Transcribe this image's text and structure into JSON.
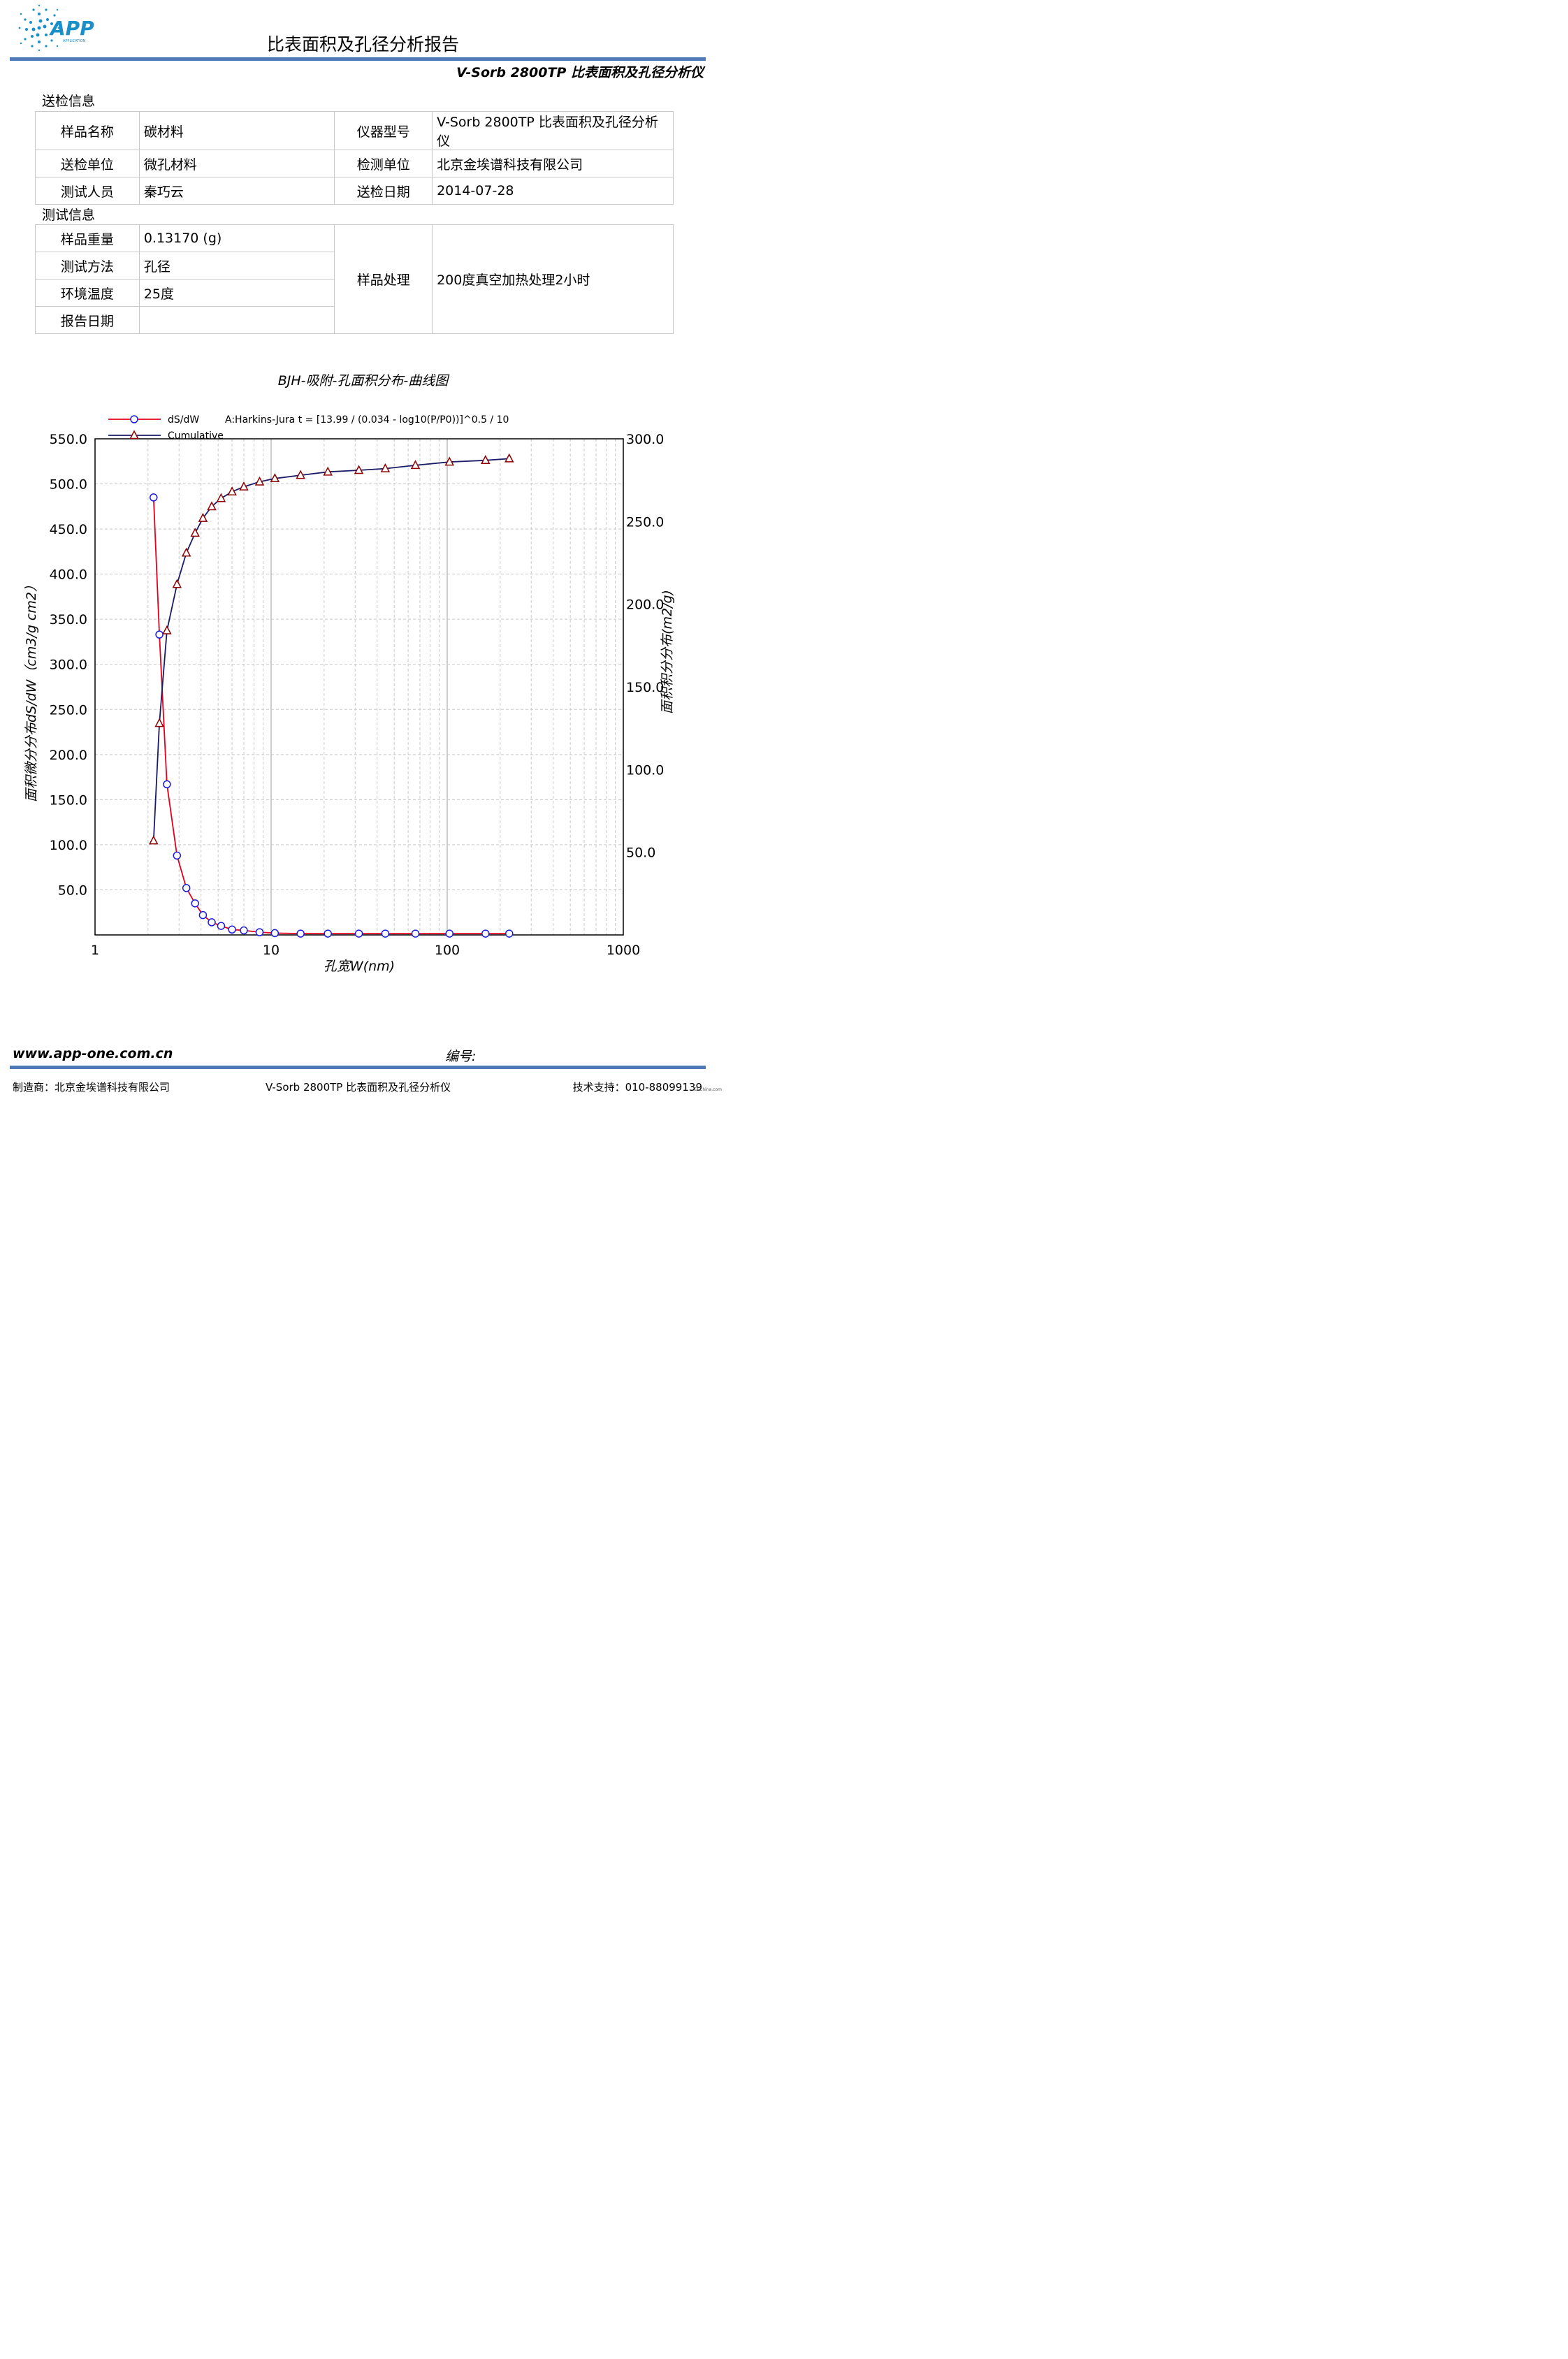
{
  "header": {
    "logo_text": "APP",
    "logo_subtext": "APPLICATION",
    "title": "比表面积及孔径分析报告",
    "subtitle": "V-Sorb 2800TP 比表面积及孔径分析仪"
  },
  "submission": {
    "section_label": "送检信息",
    "rows": [
      {
        "l1": "样品名称",
        "v1": "碳材料",
        "l2": "仪器型号",
        "v2": "V-Sorb 2800TP 比表面积及孔径分析仪"
      },
      {
        "l1": "送检单位",
        "v1": "微孔材料",
        "l2": "检测单位",
        "v2": "北京金埃谱科技有限公司"
      },
      {
        "l1": "测试人员",
        "v1": "秦巧云",
        "l2": "送检日期",
        "v2": "2014-07-28"
      }
    ]
  },
  "test": {
    "section_label": "测试信息",
    "weight_label": "样品重量",
    "weight_value": "0.13170 (g)",
    "method_label": "测试方法",
    "method_value": "孔径",
    "temp_label": "环境温度",
    "temp_value": "25度",
    "date_label": "报告日期",
    "date_value": "",
    "treat_label": "样品处理",
    "treat_value": "200度真空加热处理2小时"
  },
  "chart_data": {
    "type": "line",
    "title": "BJH-吸附-孔面积分布-曲线图",
    "xlabel": "孔宽W(nm)",
    "ylabel": "面积微分分布dS/dW（cm3/g cm2）",
    "y2label": "面积积分分布(m2/g)",
    "xscale": "log",
    "xlim": [
      1,
      1000
    ],
    "ylim": [
      0,
      550
    ],
    "y2lim": [
      0,
      300
    ],
    "x_ticks": [
      "1",
      "10",
      "100",
      "1000"
    ],
    "y_ticks": [
      "50.0",
      "100.0",
      "150.0",
      "200.0",
      "250.0",
      "300.0",
      "350.0",
      "400.0",
      "450.0",
      "500.0",
      "550.0"
    ],
    "y2_ticks": [
      "50.0",
      "100.0",
      "150.0",
      "200.0",
      "250.0",
      "300.0"
    ],
    "grid": true,
    "legend_position": "top-left",
    "annotation": "A:Harkins-Jura  t = [13.99 / (0.034 - log10(P/P0))]^0.5 / 10",
    "series": [
      {
        "name": "dS/dW",
        "axis": "left",
        "color": "#e3001b",
        "marker": "circle",
        "x": [
          2.15,
          2.32,
          2.56,
          2.92,
          3.3,
          3.7,
          4.1,
          4.6,
          5.2,
          6.0,
          7.0,
          8.6,
          10.5,
          14.7,
          21.0,
          31.5,
          44.5,
          66.0,
          103,
          165,
          225
        ],
        "y": [
          485,
          333,
          167,
          88,
          52,
          35,
          22,
          14,
          10,
          6,
          5,
          3,
          2,
          1.5,
          1.5,
          1.5,
          1.5,
          1.5,
          1.5,
          1.5,
          1.5
        ]
      },
      {
        "name": "Cumulative",
        "axis": "right",
        "color": "#1a1a66",
        "marker": "triangle",
        "x": [
          2.15,
          2.32,
          2.56,
          2.92,
          3.3,
          3.7,
          4.1,
          4.6,
          5.2,
          6.0,
          7.0,
          8.6,
          10.5,
          14.7,
          21.0,
          31.5,
          44.5,
          66.0,
          103,
          165,
          225
        ],
        "y": [
          57,
          128,
          184,
          212,
          231,
          243,
          252,
          259,
          264,
          268,
          271,
          274,
          276,
          278,
          280,
          281,
          282,
          284,
          286,
          287,
          288
        ]
      }
    ]
  },
  "footer": {
    "url": "www.app-one.com.cn",
    "number_label": "编号:",
    "maker": "制造商：北京金埃谱科技有限公司",
    "product": "V-Sorb 2800TP 比表面积及孔径分析仪",
    "support": "技术支持：010-88099139",
    "watermark": "EEChina.com"
  }
}
